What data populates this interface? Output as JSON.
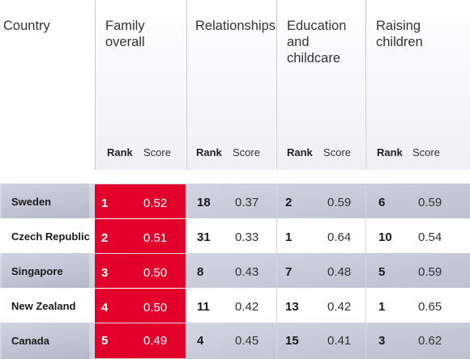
{
  "columns": {
    "country": "Country",
    "family_overall": "Family\noverall",
    "relationships": "Relationships",
    "education": "Education\nand\nchildcare",
    "raising": "Raising\nchildren",
    "rank_label": "Rank",
    "score_label": "Score"
  },
  "rows": [
    {
      "country": "Sweden",
      "f_rank": "1",
      "f_score": "0.52",
      "r_rank": "18",
      "r_score": "0.37",
      "e_rank": "2",
      "e_score": "0.59",
      "c_rank": "6",
      "c_score": "0.59"
    },
    {
      "country": "Czech Republic",
      "f_rank": "2",
      "f_score": "0.51",
      "r_rank": "31",
      "r_score": "0.33",
      "e_rank": "1",
      "e_score": "0.64",
      "c_rank": "10",
      "c_score": "0.54"
    },
    {
      "country": "Singapore",
      "f_rank": "3",
      "f_score": "0.50",
      "r_rank": "8",
      "r_score": "0.43",
      "e_rank": "7",
      "e_score": "0.48",
      "c_rank": "5",
      "c_score": "0.59"
    },
    {
      "country": "New Zealand",
      "f_rank": "4",
      "f_score": "0.50",
      "r_rank": "11",
      "r_score": "0.42",
      "e_rank": "13",
      "e_score": "0.42",
      "c_rank": "1",
      "c_score": "0.65"
    },
    {
      "country": "Canada",
      "f_rank": "5",
      "f_score": "0.49",
      "r_rank": "4",
      "r_score": "0.45",
      "e_rank": "15",
      "e_score": "0.41",
      "c_rank": "3",
      "c_score": "0.62"
    }
  ],
  "colors": {
    "highlight": "#e3002b",
    "shade": "#c9cdda"
  }
}
